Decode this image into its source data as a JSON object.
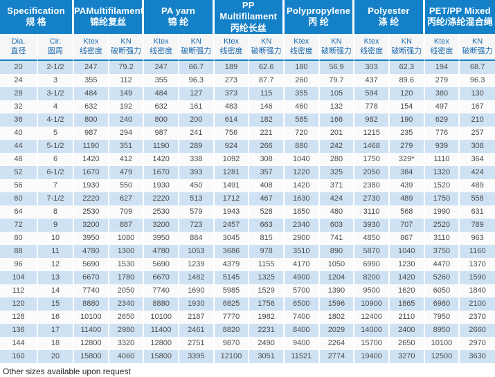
{
  "colors": {
    "header_bg": "#1480c8",
    "row_alt_bg": "#cfe2f3",
    "row_base_bg": "#fbfbfb",
    "subheader_text": "#1a6ab0",
    "data_text": "#4a4a4a"
  },
  "header": {
    "groups": [
      {
        "en": "Specification",
        "cn": "规 格"
      },
      {
        "en": "PAMultifilament",
        "cn": "锦纶复丝"
      },
      {
        "en": "PA yarn",
        "cn": "锦 纶"
      },
      {
        "en": "PP Multifilament",
        "cn": "丙纶长丝"
      },
      {
        "en": "Polypropylene",
        "cn": "丙 纶"
      },
      {
        "en": "Polyester",
        "cn": "涤 纶"
      },
      {
        "en": "PET/PP Mixed",
        "cn": "丙纶/涤纶混合绳"
      }
    ],
    "sub": {
      "dia_en": "Dia.",
      "dia_cn": "直径",
      "cir_en": "Cir.",
      "cir_cn": "圆周",
      "ktex_en": "Ktex",
      "ktex_cn": "线密度",
      "kn_en": "KN",
      "kn_cn": "破断强力"
    }
  },
  "footer": {
    "note": "Other sizes available upon request"
  },
  "chart_data": {
    "type": "table",
    "column_groups": [
      "Specification 规格",
      "PAMultifilament 锦纶复丝",
      "PA yarn 锦纶",
      "PP Multifilament 丙纶长丝",
      "Polypropylene 丙纶",
      "Polyester 涤纶",
      "PET/PP Mixed 丙纶/涤纶混合绳"
    ],
    "columns": [
      "Dia. 直径",
      "Cir. 圆周",
      "PAMultifilament Ktex 线密度",
      "PAMultifilament KN 破断强力",
      "PA yarn Ktex 线密度",
      "PA yarn KN 破断强力",
      "PP Multifilament Ktex 线密度",
      "PP Multifilament KN 破断强力",
      "Polypropylene Ktex 线密度",
      "Polypropylene KN 破断强力",
      "Polyester Ktex 线密度",
      "Polyester KN 破断强力",
      "PET/PP Mixed Ktex 线密度",
      "PET/PP Mixed KN 破断强力"
    ],
    "rows": [
      [
        "20",
        "2-1/2",
        "247",
        "79.2",
        "247",
        "66.7",
        "189",
        "62.6",
        "180",
        "56.9",
        "303",
        "62.3",
        "194",
        "68.7"
      ],
      [
        "24",
        "3",
        "355",
        "112",
        "355",
        "96.3",
        "273",
        "87.7",
        "260",
        "79.7",
        "437",
        "89.6",
        "279",
        "96.3"
      ],
      [
        "28",
        "3-1/2",
        "484",
        "149",
        "484",
        "127",
        "373",
        "115",
        "355",
        "105",
        "594",
        "120",
        "380",
        "130"
      ],
      [
        "32",
        "4",
        "632",
        "192",
        "632",
        "161",
        "483",
        "146",
        "460",
        "132",
        "778",
        "154",
        "497",
        "167"
      ],
      [
        "36",
        "4-1/2",
        "800",
        "240",
        "800",
        "200",
        "614",
        "182",
        "585",
        "166",
        "982",
        "190",
        "629",
        "210"
      ],
      [
        "40",
        "5",
        "987",
        "294",
        "987",
        "241",
        "756",
        "221",
        "720",
        "201",
        "1215",
        "235",
        "776",
        "257"
      ],
      [
        "44",
        "5-1/2",
        "1190",
        "351",
        "1190",
        "289",
        "924",
        "266",
        "880",
        "242",
        "1468",
        "279",
        "939",
        "308"
      ],
      [
        "48",
        "6",
        "1420",
        "412",
        "1420",
        "338",
        "1092",
        "308",
        "1040",
        "280",
        "1750",
        "329*",
        "1110",
        "364"
      ],
      [
        "52",
        "6-1/2",
        "1670",
        "479",
        "1670",
        "393",
        "1281",
        "357",
        "1220",
        "325",
        "2050",
        "384",
        "1320",
        "424"
      ],
      [
        "56",
        "7",
        "1930",
        "550",
        "1930",
        "450",
        "1491",
        "408",
        "1420",
        "371",
        "2380",
        "439",
        "1520",
        "489"
      ],
      [
        "60",
        "7-1/2",
        "2220",
        "627",
        "2220",
        "513",
        "1712",
        "467",
        "1630",
        "424",
        "2730",
        "489",
        "1750",
        "558"
      ],
      [
        "64",
        "8",
        "2530",
        "709",
        "2530",
        "579",
        "1943",
        "528",
        "1850",
        "480",
        "3110",
        "568",
        "1990",
        "631"
      ],
      [
        "72",
        "9",
        "3200",
        "887",
        "3200",
        "723",
        "2457",
        "663",
        "2340",
        "603",
        "3930",
        "707",
        "2520",
        "789"
      ],
      [
        "80",
        "10",
        "3950",
        "1080",
        "3950",
        "884",
        "3045",
        "815",
        "2900",
        "741",
        "4850",
        "867",
        "3110",
        "963"
      ],
      [
        "88",
        "11",
        "4780",
        "1300",
        "4780",
        "1053",
        "3686",
        "978",
        "3510",
        "890",
        "5870",
        "1040",
        "3750",
        "1160"
      ],
      [
        "96",
        "12",
        "5690",
        "1530",
        "5690",
        "1239",
        "4379",
        "1155",
        "4170",
        "1050",
        "6990",
        "1230",
        "4470",
        "1370"
      ],
      [
        "104",
        "13",
        "6670",
        "1780",
        "6670",
        "1482",
        "5145",
        "1325",
        "4900",
        "1204",
        "8200",
        "1420",
        "5260",
        "1590"
      ],
      [
        "112",
        "14",
        "7740",
        "2050",
        "7740",
        "1690",
        "5985",
        "1529",
        "5700",
        "1390",
        "9500",
        "1620",
        "6050",
        "1840"
      ],
      [
        "120",
        "15",
        "8880",
        "2340",
        "8880",
        "1930",
        "6825",
        "1756",
        "6500",
        "1596",
        "10900",
        "1865",
        "6980",
        "2100"
      ],
      [
        "128",
        "16",
        "10100",
        "2650",
        "10100",
        "2187",
        "7770",
        "1982",
        "7400",
        "1802",
        "12400",
        "2110",
        "7950",
        "2370"
      ],
      [
        "136",
        "17",
        "11400",
        "2980",
        "11400",
        "2461",
        "8820",
        "2231",
        "8400",
        "2029",
        "14000",
        "2400",
        "8950",
        "2660"
      ],
      [
        "144",
        "18",
        "12800",
        "3320",
        "12800",
        "2751",
        "9870",
        "2490",
        "9400",
        "2264",
        "15700",
        "2650",
        "10100",
        "2970"
      ],
      [
        "160",
        "20",
        "15800",
        "4060",
        "15800",
        "3395",
        "12100",
        "3051",
        "11521",
        "2774",
        "19400",
        "3270",
        "12500",
        "3630"
      ]
    ]
  }
}
